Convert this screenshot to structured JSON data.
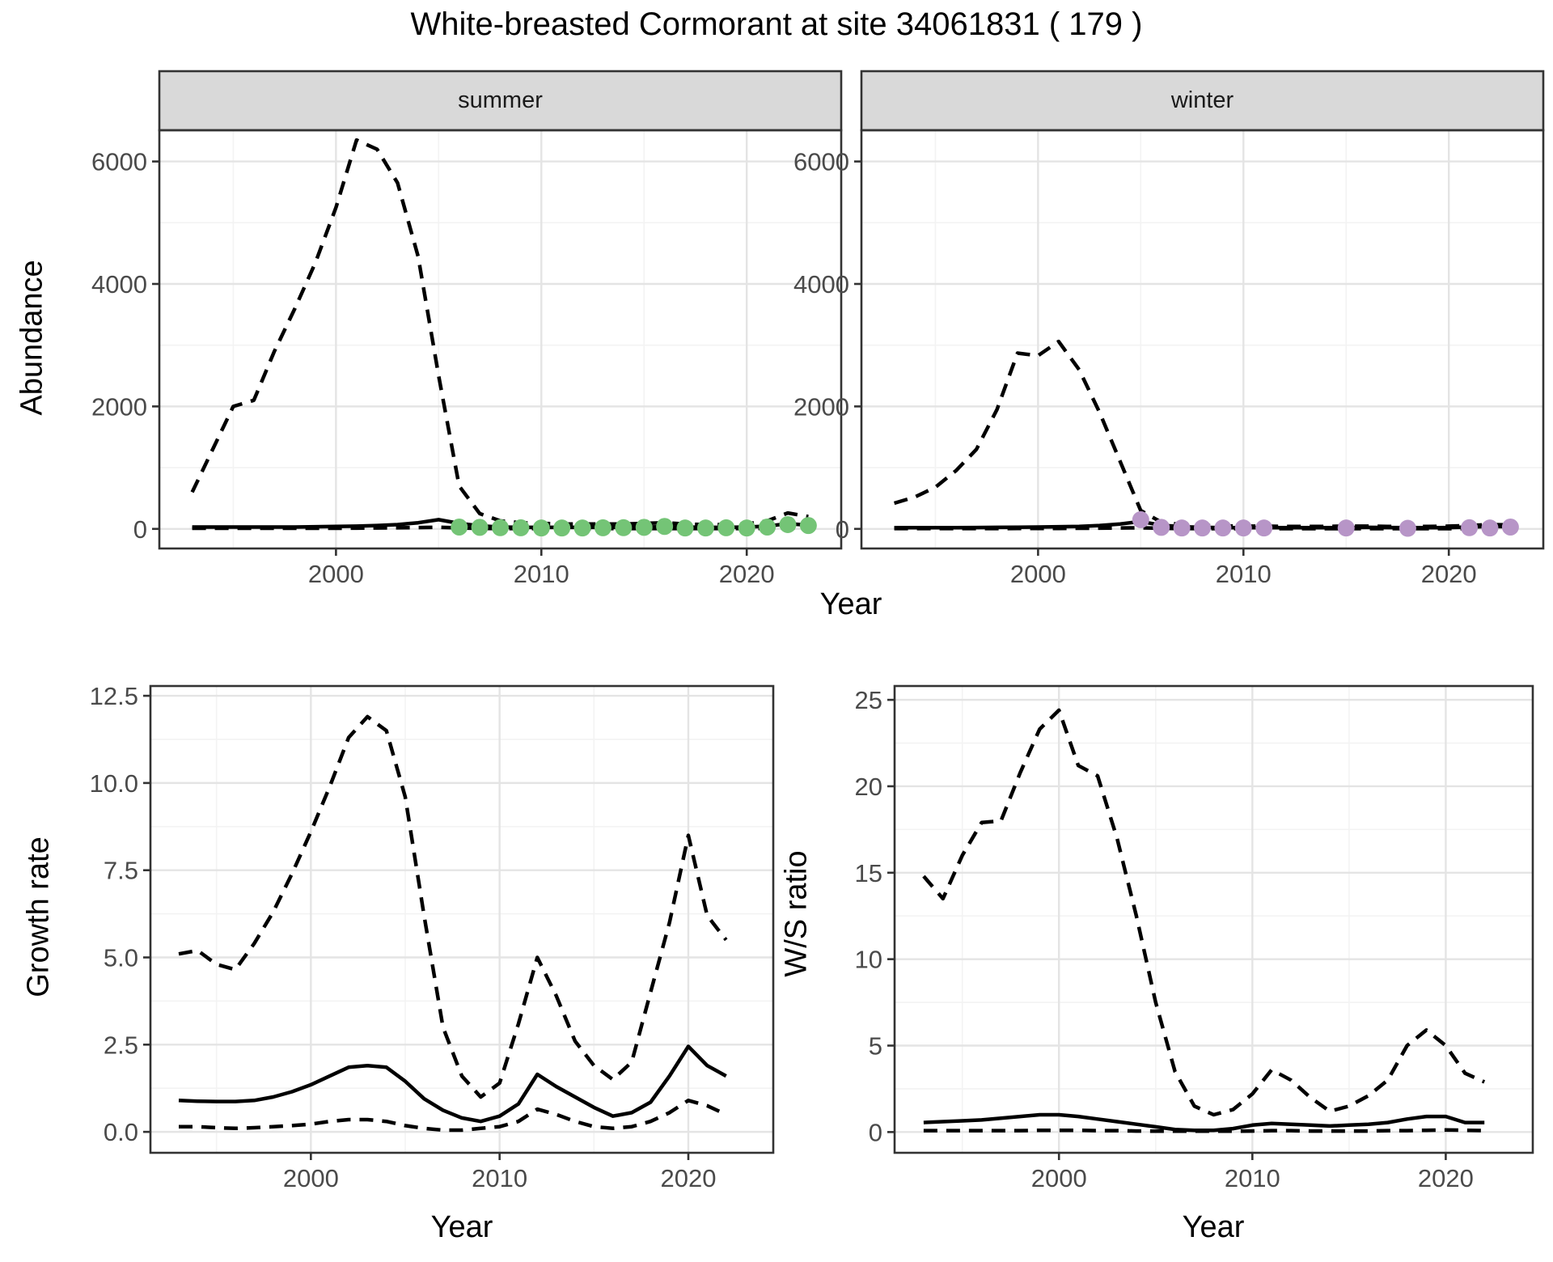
{
  "title": "White-breasted Cormorant at site 34061831 ( 179 )",
  "colors": {
    "summer_points": "#74c476",
    "winter_points": "#b795c7",
    "line": "#000000",
    "strip_bg": "#d9d9d9",
    "panel_border": "#333333",
    "grid_major": "#e4e4e4",
    "grid_minor": "#f3f3f3",
    "tick_text": "#4a4a4a",
    "tick_mark": "#333333"
  },
  "chart_data": [
    {
      "id": "abundance_summer",
      "type": "line",
      "facet": "summer",
      "ylabel": "Abundance",
      "xlabel": "Year",
      "xlim": [
        1991.4,
        2024.6
      ],
      "ylim": [
        -320,
        6510
      ],
      "x_ticks": [
        2000,
        2010,
        2020
      ],
      "x_tick_labels": [
        "2000",
        "2010",
        "2020"
      ],
      "y_ticks": [
        0,
        2000,
        4000,
        6000
      ],
      "y_tick_labels": [
        "0",
        "2000",
        "4000",
        "6000"
      ],
      "years": [
        1993,
        1994,
        1995,
        1996,
        1997,
        1998,
        1999,
        2000,
        2001,
        2002,
        2003,
        2004,
        2005,
        2006,
        2007,
        2008,
        2009,
        2010,
        2011,
        2012,
        2013,
        2014,
        2015,
        2016,
        2017,
        2018,
        2019,
        2020,
        2021,
        2022,
        2023
      ],
      "series": [
        {
          "name": "upper_ci",
          "style": "dashed",
          "values": [
            600,
            1300,
            2000,
            2100,
            2900,
            3600,
            4350,
            5250,
            6350,
            6200,
            5650,
            4450,
            2500,
            700,
            250,
            130,
            100,
            90,
            80,
            80,
            80,
            80,
            90,
            100,
            80,
            70,
            70,
            80,
            130,
            260,
            200
          ]
        },
        {
          "name": "mean",
          "style": "solid",
          "values": [
            30,
            30,
            30,
            30,
            30,
            30,
            35,
            40,
            45,
            55,
            70,
            100,
            150,
            90,
            50,
            30,
            25,
            25,
            25,
            25,
            25,
            25,
            30,
            35,
            30,
            25,
            25,
            30,
            45,
            85,
            60
          ]
        },
        {
          "name": "lower_ci",
          "style": "dashed",
          "values": [
            10,
            10,
            10,
            10,
            10,
            10,
            10,
            10,
            12,
            15,
            18,
            22,
            28,
            15,
            8,
            5,
            5,
            5,
            5,
            5,
            5,
            5,
            5,
            6,
            5,
            5,
            5,
            5,
            8,
            15,
            12
          ]
        }
      ],
      "points": {
        "name": "observations",
        "color": "#74c476",
        "years": [
          2006,
          2007,
          2008,
          2009,
          2010,
          2011,
          2012,
          2013,
          2014,
          2015,
          2016,
          2017,
          2018,
          2019,
          2020,
          2021,
          2022,
          2023
        ],
        "values": [
          30,
          25,
          20,
          18,
          15,
          15,
          15,
          18,
          20,
          25,
          40,
          15,
          15,
          18,
          15,
          30,
          70,
          55
        ]
      }
    },
    {
      "id": "abundance_winter",
      "type": "line",
      "facet": "winter",
      "ylabel": "Abundance",
      "xlabel": "Year",
      "xlim": [
        1991.4,
        2024.6
      ],
      "ylim": [
        -320,
        6510
      ],
      "x_ticks": [
        2000,
        2010,
        2020
      ],
      "x_tick_labels": [
        "2000",
        "2010",
        "2020"
      ],
      "y_ticks": [
        0,
        2000,
        4000,
        6000
      ],
      "y_tick_labels": [
        "0",
        "2000",
        "4000",
        "6000"
      ],
      "years": [
        1993,
        1994,
        1995,
        1996,
        1997,
        1998,
        1999,
        2000,
        2001,
        2002,
        2003,
        2004,
        2005,
        2006,
        2007,
        2008,
        2009,
        2010,
        2011,
        2012,
        2013,
        2014,
        2015,
        2016,
        2017,
        2018,
        2019,
        2020,
        2021,
        2022,
        2023
      ],
      "series": [
        {
          "name": "upper_ci",
          "style": "dashed",
          "values": [
            420,
            520,
            680,
            950,
            1300,
            1950,
            2870,
            2830,
            3060,
            2600,
            1900,
            1100,
            300,
            110,
            70,
            55,
            50,
            45,
            45,
            40,
            40,
            40,
            45,
            45,
            40,
            40,
            40,
            45,
            55,
            70,
            65
          ]
        },
        {
          "name": "mean",
          "style": "solid",
          "values": [
            20,
            20,
            20,
            20,
            22,
            25,
            28,
            30,
            35,
            40,
            55,
            80,
            120,
            60,
            35,
            25,
            20,
            20,
            20,
            20,
            20,
            20,
            22,
            25,
            22,
            20,
            20,
            22,
            30,
            40,
            35
          ]
        },
        {
          "name": "lower_ci",
          "style": "dashed",
          "values": [
            5,
            5,
            5,
            5,
            5,
            5,
            6,
            6,
            8,
            10,
            12,
            15,
            18,
            10,
            5,
            4,
            4,
            4,
            4,
            4,
            4,
            4,
            4,
            4,
            4,
            4,
            4,
            4,
            5,
            8,
            6
          ]
        }
      ],
      "points": {
        "name": "observations",
        "color": "#b795c7",
        "years": [
          2005,
          2006,
          2007,
          2008,
          2009,
          2010,
          2011,
          2015,
          2018,
          2021,
          2022,
          2023
        ],
        "values": [
          150,
          25,
          15,
          15,
          15,
          15,
          15,
          15,
          10,
          20,
          15,
          30
        ]
      }
    },
    {
      "id": "growth_rate",
      "type": "line",
      "facet": null,
      "ylabel": "Growth rate",
      "xlabel": "Year",
      "xlim": [
        1991.5,
        2024.5
      ],
      "ylim": [
        -0.6,
        12.78
      ],
      "x_ticks": [
        2000,
        2010,
        2020
      ],
      "x_tick_labels": [
        "2000",
        "2010",
        "2020"
      ],
      "y_ticks": [
        0,
        2.5,
        5,
        7.5,
        10,
        12.5
      ],
      "y_tick_labels": [
        "0.0",
        "2.5",
        "5.0",
        "7.5",
        "10.0",
        "12.5"
      ],
      "years": [
        1993,
        1994,
        1995,
        1996,
        1997,
        1998,
        1999,
        2000,
        2001,
        2002,
        2003,
        2004,
        2005,
        2006,
        2007,
        2008,
        2009,
        2010,
        2011,
        2012,
        2013,
        2014,
        2015,
        2016,
        2017,
        2018,
        2019,
        2020,
        2021,
        2022
      ],
      "series": [
        {
          "name": "upper_ci",
          "style": "dashed",
          "values": [
            5.1,
            5.2,
            4.8,
            4.65,
            5.4,
            6.3,
            7.4,
            8.6,
            9.9,
            11.3,
            11.9,
            11.5,
            9.6,
            6.2,
            3.0,
            1.6,
            1.0,
            1.4,
            3.1,
            5.0,
            3.9,
            2.6,
            1.9,
            1.5,
            2.0,
            4.0,
            6.0,
            8.5,
            6.2,
            5.5
          ]
        },
        {
          "name": "mean",
          "style": "solid",
          "values": [
            0.9,
            0.88,
            0.87,
            0.87,
            0.9,
            1.0,
            1.15,
            1.35,
            1.6,
            1.85,
            1.9,
            1.85,
            1.45,
            0.95,
            0.62,
            0.4,
            0.3,
            0.45,
            0.8,
            1.65,
            1.3,
            1.0,
            0.7,
            0.45,
            0.55,
            0.85,
            1.6,
            2.45,
            1.9,
            1.6
          ]
        },
        {
          "name": "lower_ci",
          "style": "dashed",
          "values": [
            0.15,
            0.15,
            0.12,
            0.1,
            0.12,
            0.15,
            0.18,
            0.22,
            0.3,
            0.35,
            0.35,
            0.3,
            0.18,
            0.1,
            0.05,
            0.05,
            0.1,
            0.15,
            0.3,
            0.65,
            0.5,
            0.3,
            0.15,
            0.1,
            0.15,
            0.3,
            0.55,
            0.9,
            0.75,
            0.5
          ]
        }
      ],
      "points": null
    },
    {
      "id": "ws_ratio",
      "type": "line",
      "facet": null,
      "ylabel": "W/S ratio",
      "xlabel": "Year",
      "xlim": [
        1991.5,
        2024.5
      ],
      "ylim": [
        -1.2,
        25.8
      ],
      "x_ticks": [
        2000,
        2010,
        2020
      ],
      "x_tick_labels": [
        "2000",
        "2010",
        "2020"
      ],
      "y_ticks": [
        0,
        5,
        10,
        15,
        20,
        25
      ],
      "y_tick_labels": [
        "0",
        "5",
        "10",
        "15",
        "20",
        "25"
      ],
      "years": [
        1993,
        1994,
        1995,
        1996,
        1997,
        1998,
        1999,
        2000,
        2001,
        2002,
        2003,
        2004,
        2005,
        2006,
        2007,
        2008,
        2009,
        2010,
        2011,
        2012,
        2013,
        2014,
        2015,
        2016,
        2017,
        2018,
        2019,
        2020,
        2021,
        2022
      ],
      "series": [
        {
          "name": "upper_ci",
          "style": "dashed",
          "values": [
            14.8,
            13.5,
            16.0,
            17.9,
            18.0,
            20.8,
            23.3,
            24.4,
            21.2,
            20.6,
            17.0,
            12.5,
            7.5,
            3.5,
            1.5,
            1.0,
            1.3,
            2.2,
            3.6,
            3.0,
            2.0,
            1.2,
            1.5,
            2.1,
            3.0,
            5.0,
            5.9,
            5.0,
            3.4,
            2.9
          ]
        },
        {
          "name": "mean",
          "style": "solid",
          "values": [
            0.55,
            0.6,
            0.65,
            0.7,
            0.8,
            0.9,
            1.0,
            1.0,
            0.9,
            0.75,
            0.6,
            0.45,
            0.3,
            0.15,
            0.1,
            0.1,
            0.2,
            0.4,
            0.5,
            0.45,
            0.4,
            0.35,
            0.4,
            0.45,
            0.55,
            0.75,
            0.9,
            0.9,
            0.55,
            0.55
          ]
        },
        {
          "name": "lower_ci",
          "style": "dashed",
          "values": [
            0.08,
            0.08,
            0.08,
            0.08,
            0.08,
            0.08,
            0.1,
            0.1,
            0.1,
            0.08,
            0.08,
            0.06,
            0.05,
            0.05,
            0.05,
            0.05,
            0.05,
            0.06,
            0.08,
            0.08,
            0.06,
            0.06,
            0.06,
            0.06,
            0.08,
            0.08,
            0.1,
            0.12,
            0.1,
            0.08
          ]
        }
      ],
      "points": null
    }
  ]
}
